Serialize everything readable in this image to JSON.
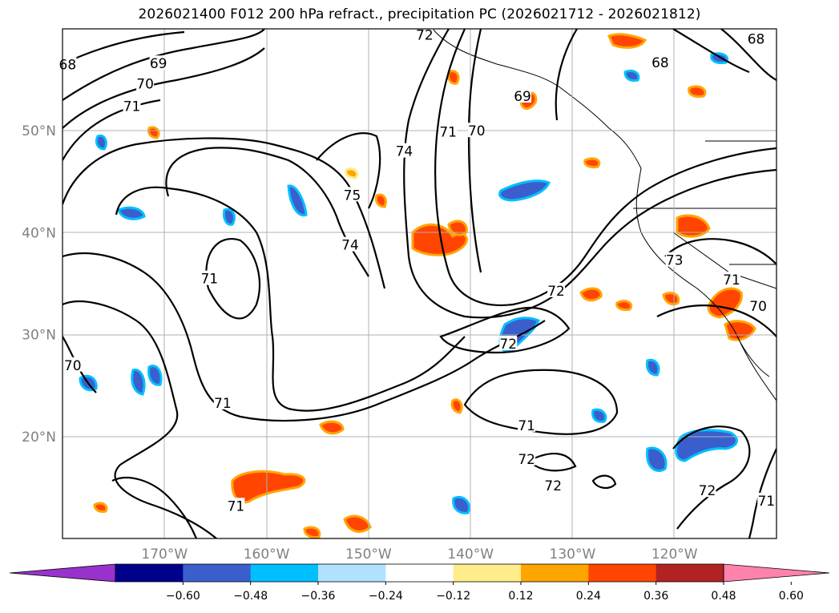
{
  "title": "2026021400 F012 200 hPa refract., precipitation PC (2026021712 - 2026021812)",
  "axes": {
    "lat_ticks": [
      {
        "value": 50,
        "label": "50°N"
      },
      {
        "value": 40,
        "label": "40°N"
      },
      {
        "value": 30,
        "label": "30°N"
      },
      {
        "value": 20,
        "label": "20°N"
      }
    ],
    "lon_ticks": [
      {
        "value": -170,
        "label": "170°W"
      },
      {
        "value": -160,
        "label": "160°W"
      },
      {
        "value": -150,
        "label": "150°W"
      },
      {
        "value": -140,
        "label": "140°W"
      },
      {
        "value": -130,
        "label": "130°W"
      },
      {
        "value": -120,
        "label": "120°W"
      }
    ],
    "lon_range": [
      -180,
      -110
    ],
    "lat_range": [
      10,
      60
    ],
    "grid": true
  },
  "contour_labels": [
    {
      "text": "68",
      "lon": -179.5,
      "lat": 56.5
    },
    {
      "text": "69",
      "lon": -170.6,
      "lat": 56.6
    },
    {
      "text": "70",
      "lon": -171.9,
      "lat": 54.6
    },
    {
      "text": "71",
      "lon": -173.2,
      "lat": 52.4
    },
    {
      "text": "72",
      "lon": -144.5,
      "lat": 59.4
    },
    {
      "text": "74",
      "lon": -146.5,
      "lat": 48.0
    },
    {
      "text": "75",
      "lon": -151.6,
      "lat": 43.7
    },
    {
      "text": "74",
      "lon": -151.8,
      "lat": 38.8
    },
    {
      "text": "71",
      "lon": -142.2,
      "lat": 49.9
    },
    {
      "text": "70",
      "lon": -139.4,
      "lat": 50.0
    },
    {
      "text": "69",
      "lon": -134.9,
      "lat": 53.4
    },
    {
      "text": "68",
      "lon": -121.4,
      "lat": 56.7
    },
    {
      "text": "68",
      "lon": -112.0,
      "lat": 59.0
    },
    {
      "text": "71",
      "lon": -165.6,
      "lat": 35.5
    },
    {
      "text": "72",
      "lon": -131.6,
      "lat": 34.3
    },
    {
      "text": "72",
      "lon": -136.3,
      "lat": 29.1
    },
    {
      "text": "73",
      "lon": -120.0,
      "lat": 37.3
    },
    {
      "text": "71",
      "lon": -114.4,
      "lat": 35.4
    },
    {
      "text": "70",
      "lon": -111.8,
      "lat": 32.8
    },
    {
      "text": "70",
      "lon": -179.0,
      "lat": 27.0
    },
    {
      "text": "71",
      "lon": -164.3,
      "lat": 23.3
    },
    {
      "text": "71",
      "lon": -134.5,
      "lat": 21.1
    },
    {
      "text": "72",
      "lon": -134.5,
      "lat": 17.8
    },
    {
      "text": "72",
      "lon": -131.9,
      "lat": 15.2
    },
    {
      "text": "72",
      "lon": -116.8,
      "lat": 14.7
    },
    {
      "text": "71",
      "lon": -111.0,
      "lat": 13.7
    },
    {
      "text": "71",
      "lon": -163.0,
      "lat": 13.2
    }
  ],
  "colorbar": {
    "colors": [
      "#9932CC",
      "#00008B",
      "#3A5FCD",
      "#00BFFF",
      "#B0E2FF",
      "#FFFFFF",
      "#FFEC8B",
      "#FFA500",
      "#FF4500",
      "#B22222",
      "#FF82AB"
    ],
    "tick_labels": [
      "−0.60",
      "−0.48",
      "−0.36",
      "−0.24",
      "−0.12",
      "0.12",
      "0.24",
      "0.36",
      "0.48",
      "0.60"
    ]
  }
}
